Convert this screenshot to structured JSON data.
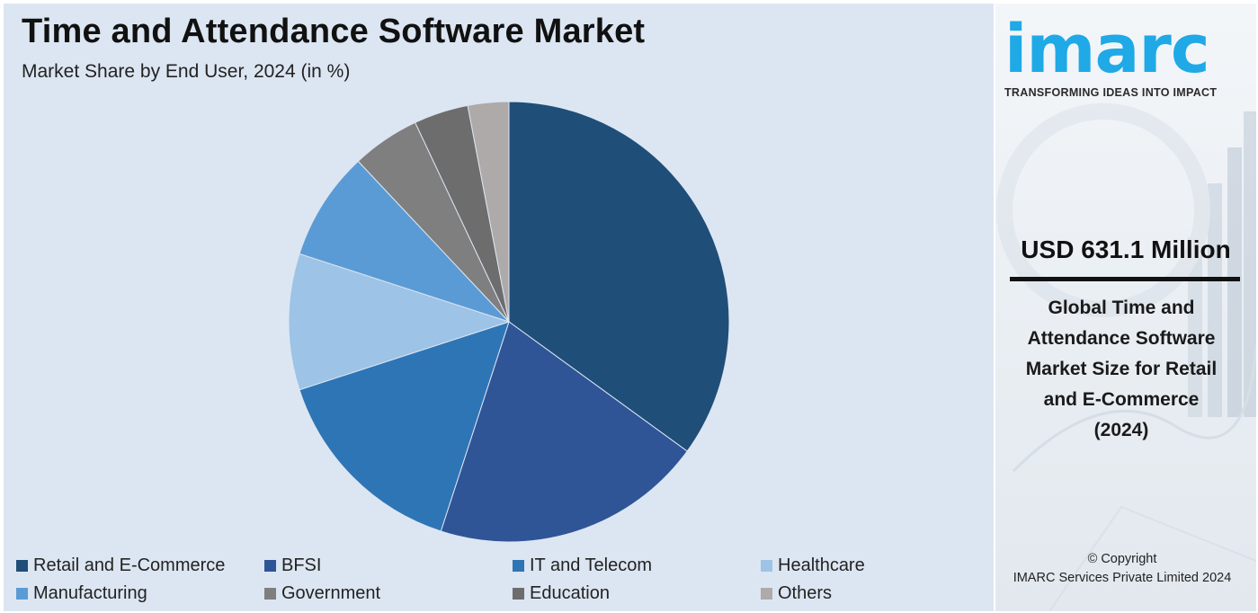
{
  "title": "Time and Attendance Software Market",
  "subtitle": "Market Share by End User, 2024 (in %)",
  "chart_data": {
    "type": "pie",
    "title": "Time and Attendance Software Market",
    "subtitle": "Market Share by End User, 2024 (in %)",
    "legend_position": "bottom",
    "start_angle_deg": 0,
    "direction": "clockwise",
    "slices": [
      {
        "label": "Retail and E-Commerce",
        "value": 35,
        "color": "#1f4e79"
      },
      {
        "label": "BFSI",
        "value": 20,
        "color": "#2f5597"
      },
      {
        "label": "IT and Telecom",
        "value": 15,
        "color": "#2e75b6"
      },
      {
        "label": "Healthcare",
        "value": 10,
        "color": "#9dc3e6"
      },
      {
        "label": "Manufacturing",
        "value": 8,
        "color": "#5b9bd5"
      },
      {
        "label": "Government",
        "value": 5,
        "color": "#7f7f7f"
      },
      {
        "label": "Education",
        "value": 4,
        "color": "#6d6d6d"
      },
      {
        "label": "Others",
        "value": 3,
        "color": "#aeaaaa"
      }
    ]
  },
  "brand": {
    "logo_text": "imarc",
    "tagline": "TRANSFORMING IDEAS INTO IMPACT",
    "color": "#1fa9e6"
  },
  "highlight": {
    "value": "USD 631.1 Million",
    "description_lines": [
      "Global Time and",
      "Attendance Software",
      "Market Size for Retail",
      "and E-Commerce",
      "(2024)"
    ]
  },
  "copyright": {
    "line1": "© Copyright",
    "line2": "IMARC Services Private Limited 2024"
  }
}
